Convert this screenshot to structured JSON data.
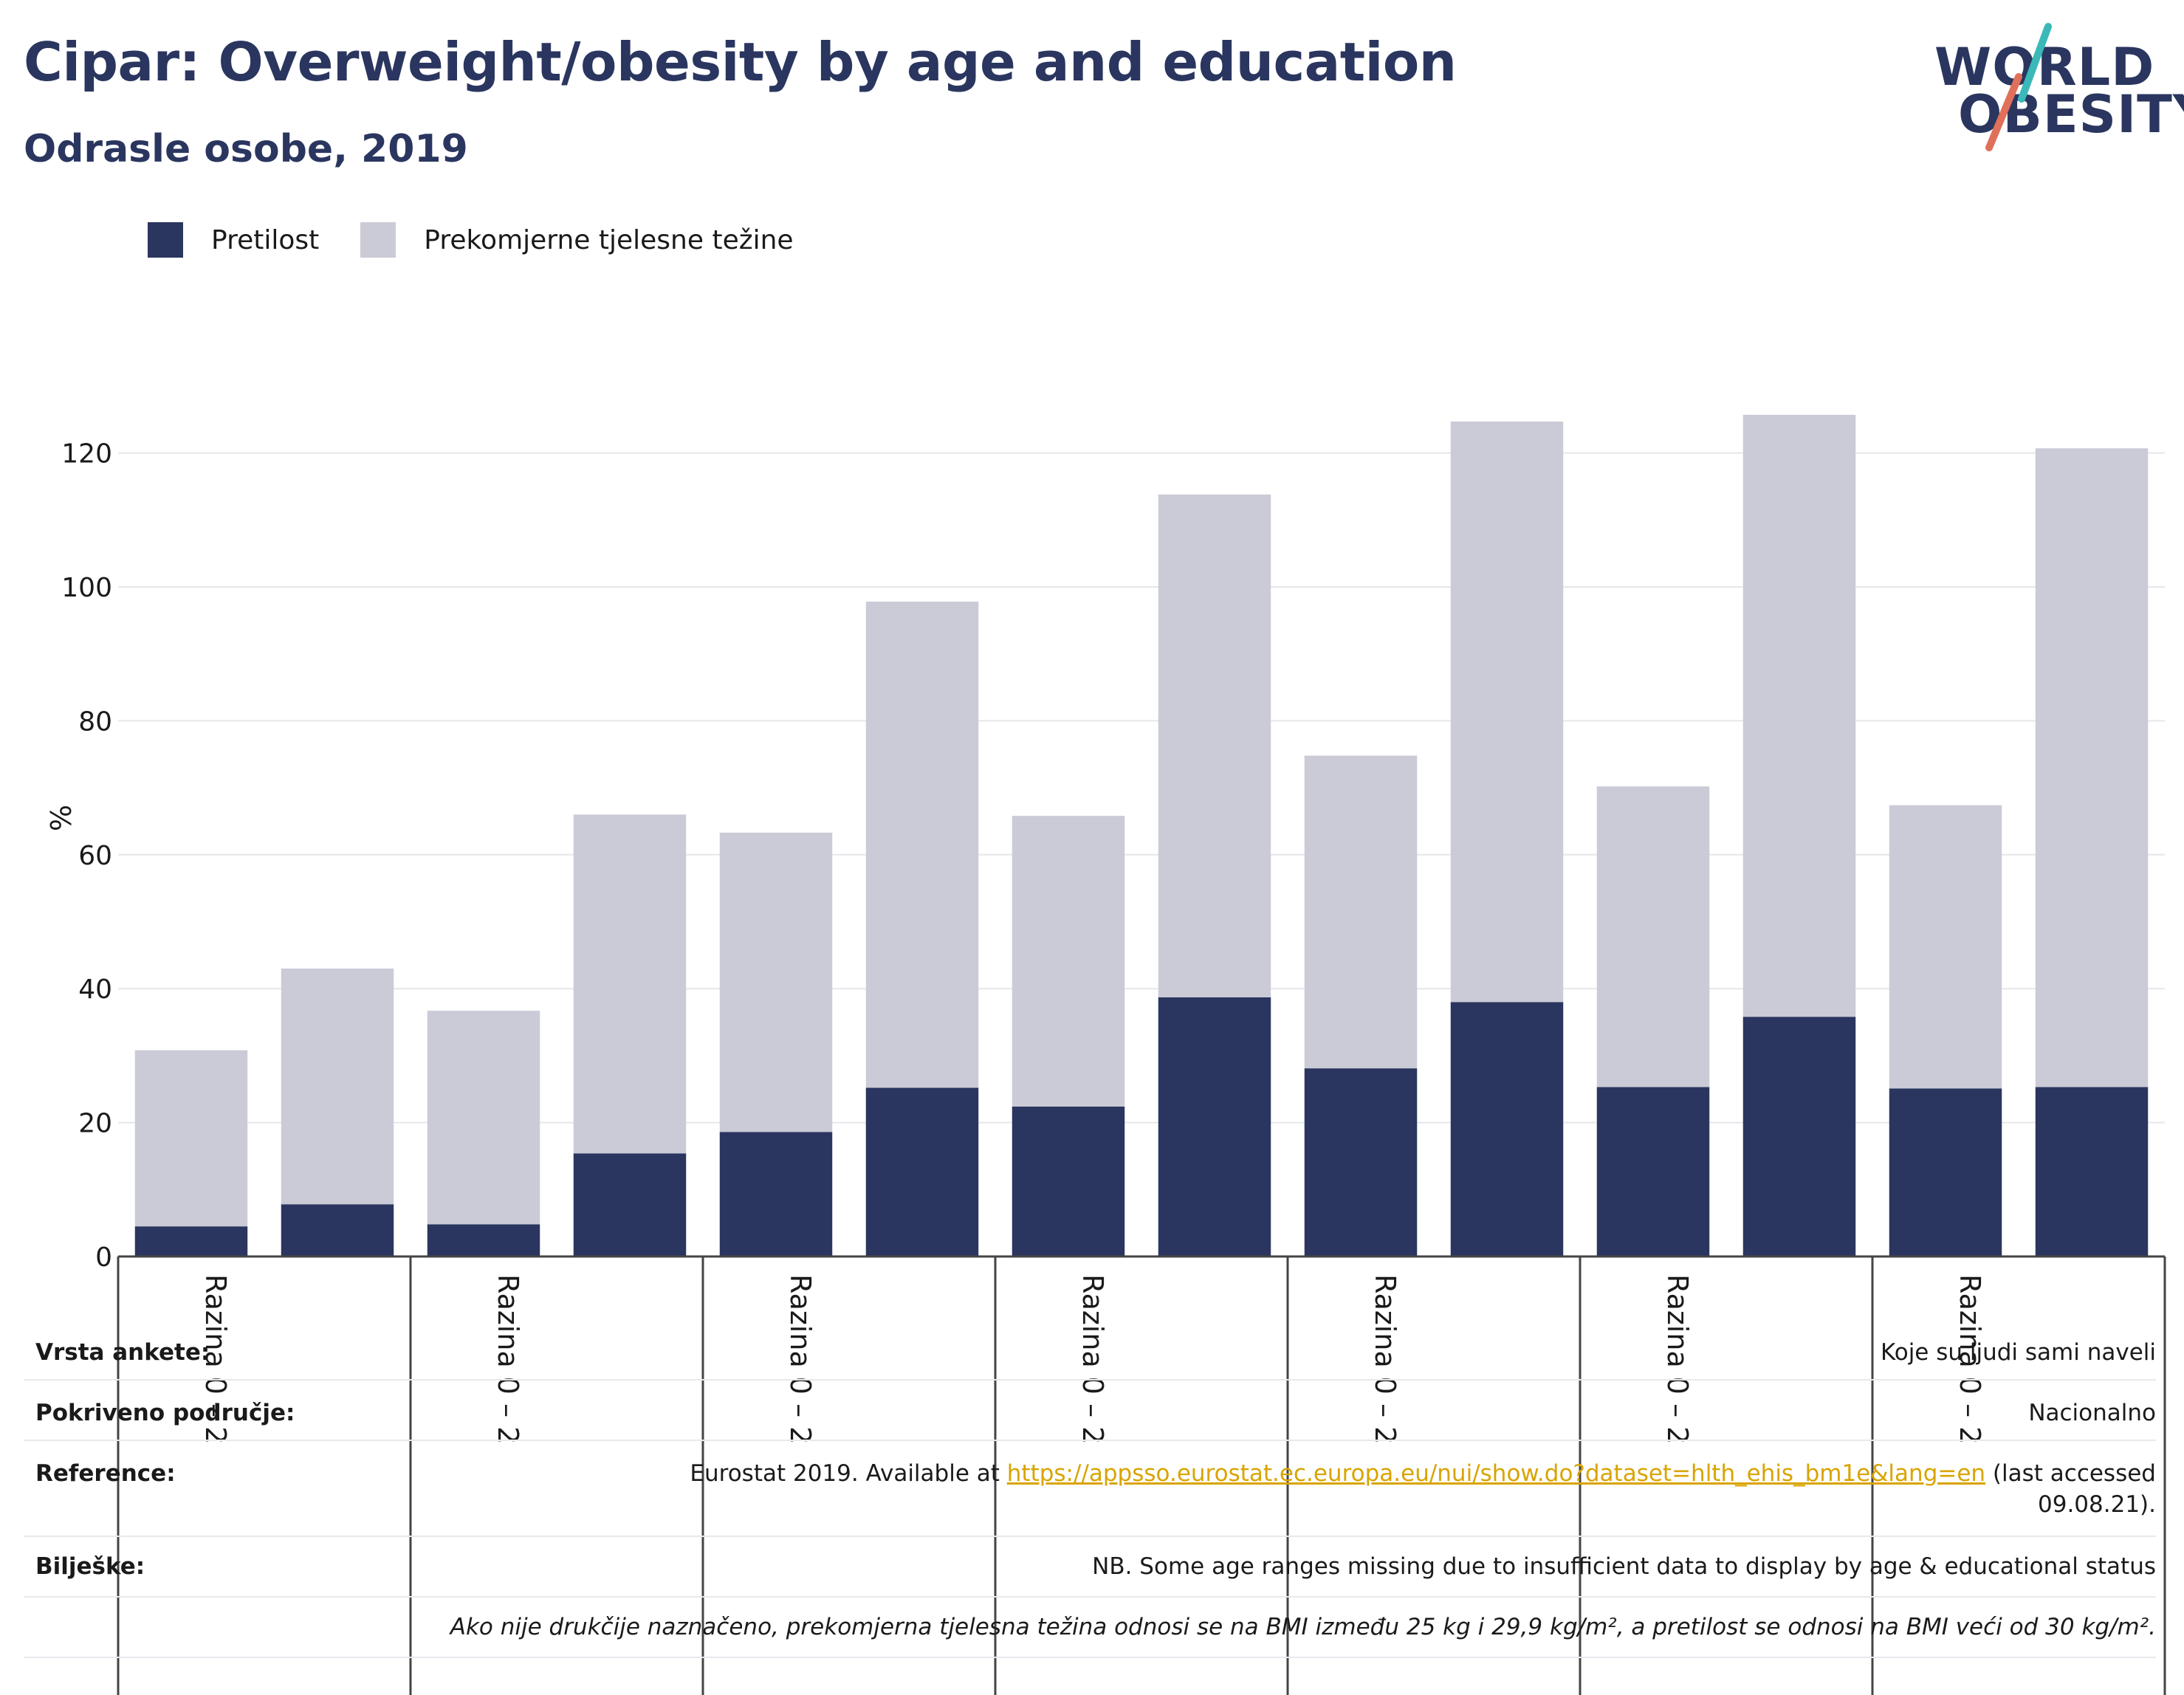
{
  "header": {
    "title": "Cipar: Overweight/obesity by age and education",
    "subtitle": "Odrasle osobe, 2019"
  },
  "logo": {
    "line1": "WORLD",
    "line2": "OBESITY",
    "accent_teal": "#3bb8b8",
    "accent_coral": "#e0705a"
  },
  "legend": {
    "items": [
      {
        "label": "Pretilost",
        "color": "#2a365f"
      },
      {
        "label": "Prekomjerne tjelesne težine",
        "color": "#cacbd6"
      }
    ]
  },
  "chart_data": {
    "type": "bar",
    "stacked": true,
    "ylabel": "%",
    "ylim": [
      0,
      130
    ],
    "yticks": [
      0,
      20,
      40,
      60,
      80,
      100,
      120
    ],
    "grid": true,
    "group_labels": [
      "Razina 0 – 2",
      "Razina 0 – 2",
      "Razina 0 – 2",
      "Razina 0 – 2",
      "Razina 0 – 2",
      "Razina 0 – 2",
      "Razina 0 – 2"
    ],
    "series": [
      {
        "name": "Pretilost",
        "color": "#2a365f",
        "values": [
          4.5,
          7.8,
          4.8,
          15.4,
          18.6,
          25.2,
          22.4,
          38.7,
          28.1,
          38.0,
          25.3,
          35.8,
          25.1,
          25.3
        ]
      },
      {
        "name": "Prekomjerne tjelesne težine",
        "color": "#cacbd6",
        "values": [
          26.3,
          35.2,
          31.9,
          50.6,
          44.7,
          72.6,
          43.4,
          75.1,
          46.7,
          86.7,
          44.9,
          89.9,
          42.3,
          95.4
        ]
      }
    ]
  },
  "info": {
    "survey_type_label": "Vrsta ankete:",
    "survey_type_value": "Koje su ljudi sami naveli",
    "coverage_label": "Pokriveno područje:",
    "coverage_value": "Nacionalno",
    "reference_label": "Reference:",
    "reference_prefix": "Eurostat 2019. Available at ",
    "reference_link": "https://appsso.eurostat.ec.europa.eu/nui/show.do?dataset=hlth_ehis_bm1e&lang=en",
    "reference_suffix": " (last accessed",
    "reference_date": "09.08.21).",
    "notes_label": "Bilješke:",
    "notes_value": "NB. Some age ranges missing due to insufficient data to display by age & educational status",
    "definition": "Ako nije drukčije naznačeno, prekomjerna tjelesna težina odnosi se na BMI između 25 kg i 29,9 kg/m², a pretilost se odnosi na BMI veći od 30 kg/m²."
  }
}
